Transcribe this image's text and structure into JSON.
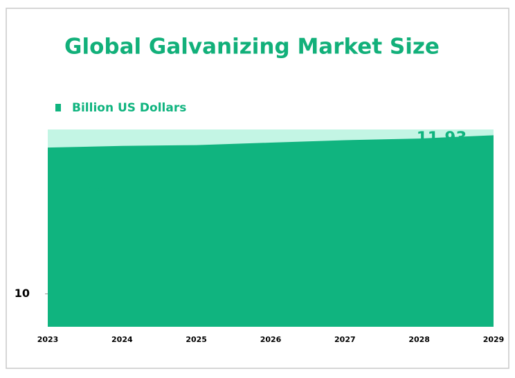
{
  "chart_data": {
    "type": "area",
    "title": "Global Galvanizing Market Size",
    "categories": [
      "2023",
      "2024",
      "2025",
      "2026",
      "2027",
      "2028",
      "2029"
    ],
    "series": [
      {
        "name": "Billion US Dollars",
        "color": "#10b47f",
        "values": [
          11.78,
          11.8,
          11.81,
          11.84,
          11.87,
          11.89,
          11.93
        ]
      }
    ],
    "ylim": [
      9.6,
      12.0
    ],
    "yticks": [
      10
    ],
    "plot_background": "#c3f5e4"
  }
}
